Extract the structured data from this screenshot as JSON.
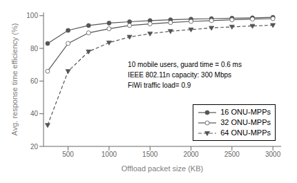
{
  "chart_data": {
    "type": "line",
    "xlabel": "Offload packet size (KB)",
    "ylabel": "Avg. response time efficiency (%)",
    "x": [
      250,
      500,
      750,
      1000,
      1250,
      1500,
      1750,
      2000,
      2250,
      2500,
      2750,
      3000
    ],
    "series": [
      {
        "name": "16 ONU-MPPs",
        "color": "#555555",
        "marker": "circle",
        "line_style": "solid",
        "values": [
          83,
          91,
          94,
          95.5,
          96.3,
          97,
          97.5,
          97.9,
          98.2,
          98.5,
          98.7,
          99.0
        ]
      },
      {
        "name": "32 ONU-MPPs",
        "color": "#555555",
        "marker": "circle-open",
        "line_style": "solid",
        "values": [
          66,
          83,
          89.5,
          92,
          94,
          95,
          95.8,
          96.5,
          97,
          97.5,
          97.9,
          98.2
        ]
      },
      {
        "name": "64 ONU-MPPs",
        "color": "#555555",
        "marker": "triangle-down",
        "line_style": "dashed",
        "values": [
          33,
          66,
          78,
          83.5,
          87,
          89,
          90.5,
          91.5,
          92.5,
          93.2,
          93.7,
          94.2
        ]
      }
    ],
    "xlim": [
      200,
      3100
    ],
    "ylim": [
      20,
      102
    ],
    "xticks": [
      500,
      1000,
      1500,
      2000,
      2500,
      3000
    ],
    "yticks": [
      20,
      40,
      60,
      80,
      100
    ],
    "annotation": "10 mobile users, guard time = 0.6 ms\nIEEE 802.11n capacity: 300 Mbps\nFiWi traffic load= 0.9",
    "legend": "lower right",
    "grid": false
  }
}
